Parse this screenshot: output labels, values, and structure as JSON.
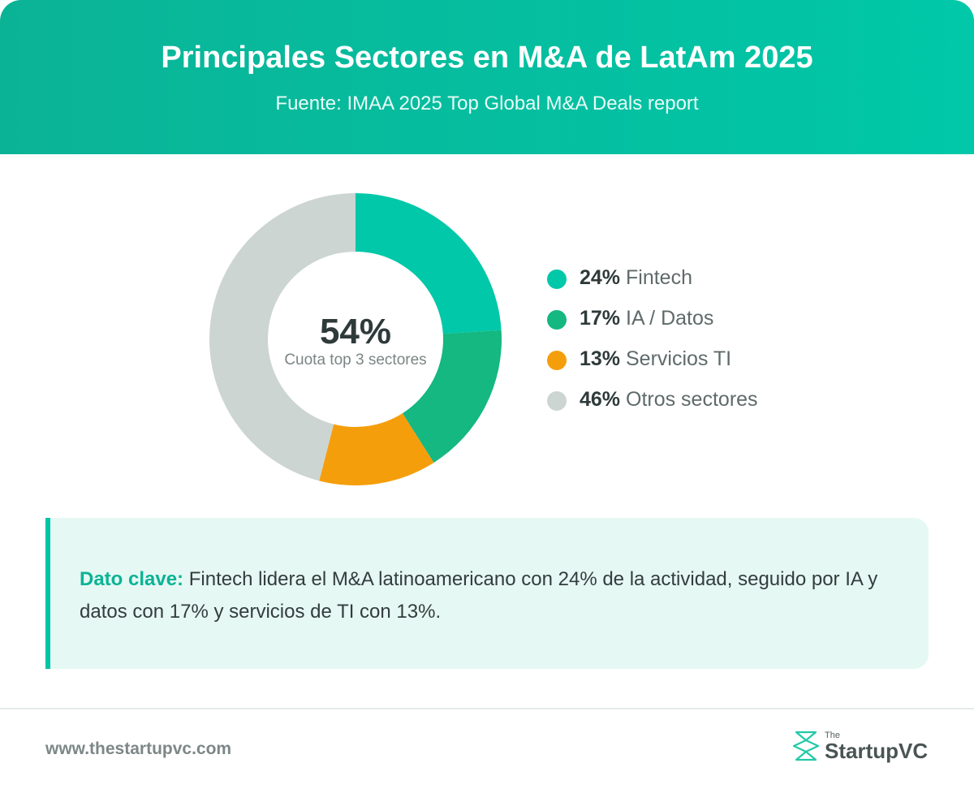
{
  "header": {
    "title": "Principales Sectores en M&A de LatAm 2025",
    "subtitle": "Fuente: IMAA 2025 Top Global M&A Deals report"
  },
  "chart_data": {
    "type": "pie",
    "style": "donut",
    "categories": [
      "Fintech",
      "IA / Datos",
      "Servicios TI",
      "Otros sectores"
    ],
    "values": [
      24,
      17,
      13,
      46
    ],
    "labels": [
      "24%",
      "17%",
      "13%",
      "46%"
    ],
    "colors": [
      "#00c8a8",
      "#14b880",
      "#f59e0b",
      "#ccd5d2"
    ],
    "center_value": "54%",
    "center_label": "Cuota top 3 sectores",
    "legend_position": "right"
  },
  "key_fact": {
    "label": "Dato clave:",
    "text": " Fintech lidera el M&A latinoamericano con 24% de la actividad, seguido por IA y datos con 17% y servicios de TI con 13%."
  },
  "footer": {
    "url": "www.thestartupvc.com",
    "logo_small": "The",
    "logo_name": "StartupVC"
  }
}
